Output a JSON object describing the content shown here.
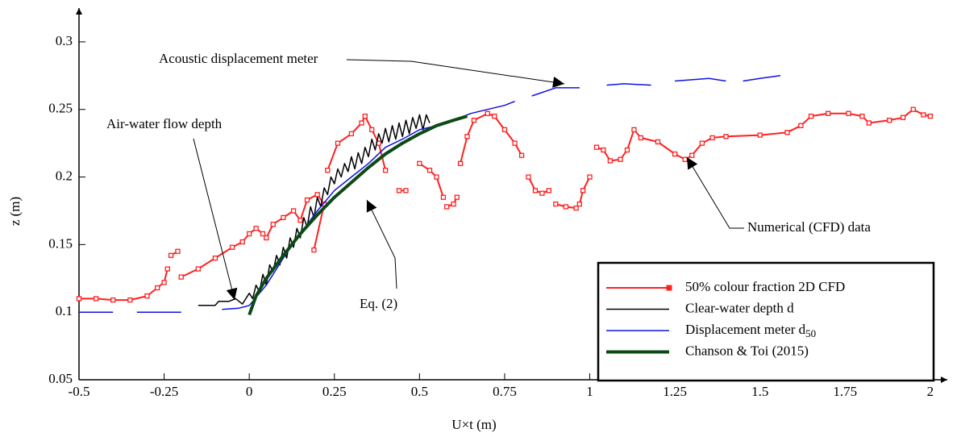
{
  "chart_data": {
    "type": "line",
    "xlabel": "U×t (m)",
    "ylabel": "z (m)",
    "xlim": [
      -0.5,
      2.05
    ],
    "ylim": [
      0.05,
      0.325
    ],
    "xticks": [
      -0.5,
      -0.25,
      0,
      0.25,
      0.5,
      0.75,
      1,
      1.25,
      1.5,
      1.75,
      2
    ],
    "yticks": [
      0.05,
      0.1,
      0.15,
      0.2,
      0.25,
      0.3
    ],
    "legend": "lower right",
    "annotations": [
      "Acoustic displacement meter",
      "Air-water flow depth",
      "Eq. (2)",
      "Numerical (CFD) data"
    ],
    "series": [
      {
        "name": "50% colour fraction 2D CFD",
        "color": "#ff2020",
        "markers": true,
        "width": 2,
        "x": [
          -0.5,
          -0.45,
          -0.4,
          -0.35,
          -0.3,
          -0.27,
          -0.25,
          -0.24,
          null,
          -0.23,
          -0.21,
          null,
          -0.2,
          -0.15,
          -0.1,
          -0.05,
          -0.02,
          0,
          0.02,
          0.04,
          0.05,
          0.07,
          0.1,
          0.13,
          0.15,
          0.17,
          0.2,
          0.22,
          0.19,
          null,
          0.23,
          0.26,
          0.3,
          0.33,
          0.34,
          0.36,
          0.38,
          0.4,
          null,
          0.44,
          0.46,
          null,
          0.5,
          0.53,
          0.55,
          0.57,
          null,
          0.58,
          0.6,
          0.61,
          null,
          0.62,
          0.64,
          0.66,
          0.7,
          0.72,
          0.75,
          0.78,
          0.8,
          null,
          0.82,
          0.84,
          0.86,
          0.88,
          null,
          0.9,
          0.93,
          0.96,
          0.97,
          0.98,
          1.0,
          null,
          1.02,
          1.04,
          1.06,
          1.09,
          1.11,
          1.13,
          1.15,
          1.2,
          1.25,
          1.28,
          1.3,
          1.33,
          1.36,
          1.4,
          1.5,
          1.58,
          1.62,
          1.65,
          1.7,
          1.76,
          1.8,
          1.82,
          1.88,
          1.92,
          1.95,
          1.98,
          2.0
        ],
        "values": [
          0.11,
          0.11,
          0.109,
          0.109,
          0.112,
          0.118,
          0.122,
          0.132,
          null,
          0.142,
          0.145,
          null,
          0.126,
          0.132,
          0.14,
          0.148,
          0.152,
          0.158,
          0.162,
          0.158,
          0.155,
          0.165,
          0.17,
          0.175,
          0.168,
          0.183,
          0.187,
          0.18,
          0.146,
          null,
          0.205,
          0.225,
          0.232,
          0.24,
          0.245,
          0.235,
          0.225,
          0.205,
          null,
          0.19,
          0.19,
          null,
          0.21,
          0.205,
          0.2,
          0.185,
          null,
          0.178,
          0.18,
          0.185,
          null,
          0.21,
          0.23,
          0.242,
          0.247,
          0.245,
          0.235,
          0.225,
          0.216,
          null,
          0.2,
          0.19,
          0.188,
          0.19,
          null,
          0.18,
          0.178,
          0.177,
          0.18,
          0.19,
          0.2,
          null,
          0.222,
          0.22,
          0.212,
          0.213,
          0.22,
          0.235,
          0.229,
          0.226,
          0.217,
          0.213,
          0.216,
          0.225,
          0.229,
          0.23,
          0.231,
          0.233,
          0.238,
          0.245,
          0.247,
          0.247,
          0.245,
          0.24,
          0.242,
          0.244,
          0.25,
          0.246,
          0.245
        ]
      },
      {
        "name": "Clear-water depth d",
        "color": "#000000",
        "markers": false,
        "width": 1.5,
        "x": [
          -0.15,
          -0.1,
          -0.09,
          -0.06,
          -0.04,
          -0.02,
          0,
          0.01,
          0.02,
          0.03,
          0.04,
          0.05,
          0.06,
          0.07,
          0.08,
          0.09,
          0.1,
          0.11,
          0.12,
          0.13,
          0.14,
          0.15,
          0.16,
          0.17,
          0.18,
          0.19,
          0.2,
          0.21,
          0.22,
          0.23,
          0.24,
          0.25,
          0.26,
          0.27,
          0.28,
          0.29,
          0.3,
          0.31,
          0.32,
          0.33,
          0.34,
          0.35,
          0.36,
          0.37,
          0.38,
          0.39,
          0.4,
          0.41,
          0.42,
          0.43,
          0.44,
          0.45,
          0.46,
          0.47,
          0.48,
          0.49,
          0.5,
          0.51,
          0.52,
          0.53
        ],
        "values": [
          0.105,
          0.105,
          0.108,
          0.108,
          0.11,
          0.106,
          0.114,
          0.11,
          0.12,
          0.115,
          0.128,
          0.12,
          0.135,
          0.13,
          0.142,
          0.135,
          0.148,
          0.14,
          0.155,
          0.148,
          0.162,
          0.155,
          0.17,
          0.163,
          0.178,
          0.17,
          0.185,
          0.178,
          0.192,
          0.187,
          0.2,
          0.195,
          0.206,
          0.2,
          0.21,
          0.204,
          0.215,
          0.206,
          0.218,
          0.21,
          0.222,
          0.215,
          0.228,
          0.22,
          0.232,
          0.225,
          0.236,
          0.226,
          0.238,
          0.228,
          0.24,
          0.23,
          0.242,
          0.232,
          0.244,
          0.236,
          0.246,
          0.235,
          0.246,
          0.24
        ]
      },
      {
        "name": "Displacement meter d",
        "sub": "50",
        "color": "#1010e0",
        "markers": false,
        "width": 1.5,
        "x": [
          -0.5,
          -0.45,
          -0.4,
          null,
          -0.33,
          -0.25,
          -0.2,
          null,
          -0.08,
          -0.03,
          0,
          0.05,
          0.1,
          0.15,
          0.2,
          0.25,
          0.3,
          0.35,
          0.4,
          0.45,
          0.5,
          0.55,
          null,
          0.6,
          0.65,
          0.7,
          0.75,
          0.78,
          null,
          0.83,
          0.9,
          0.97,
          null,
          1.05,
          1.1,
          1.18,
          null,
          1.25,
          1.35,
          1.4,
          null,
          1.45,
          1.5,
          1.56
        ],
        "values": [
          0.1,
          0.1,
          0.1,
          null,
          0.1,
          0.1,
          0.1,
          null,
          0.102,
          0.103,
          0.105,
          0.12,
          0.14,
          0.158,
          0.175,
          0.19,
          0.2,
          0.21,
          0.222,
          0.228,
          0.235,
          0.238,
          null,
          0.242,
          0.247,
          0.25,
          0.253,
          0.256,
          null,
          0.26,
          0.266,
          0.266,
          null,
          0.268,
          0.269,
          0.268,
          null,
          0.271,
          0.273,
          0.271,
          null,
          0.271,
          0.273,
          0.275
        ]
      },
      {
        "name": "Chanson & Toi (2015)",
        "color": "#0b4a14",
        "markers": false,
        "width": 4,
        "x": [
          0,
          0.02,
          0.05,
          0.1,
          0.15,
          0.2,
          0.25,
          0.3,
          0.35,
          0.4,
          0.45,
          0.5,
          0.55,
          0.6,
          0.64
        ],
        "values": [
          0.098,
          0.112,
          0.125,
          0.142,
          0.158,
          0.172,
          0.185,
          0.196,
          0.207,
          0.217,
          0.225,
          0.232,
          0.238,
          0.242,
          0.245
        ]
      }
    ]
  }
}
